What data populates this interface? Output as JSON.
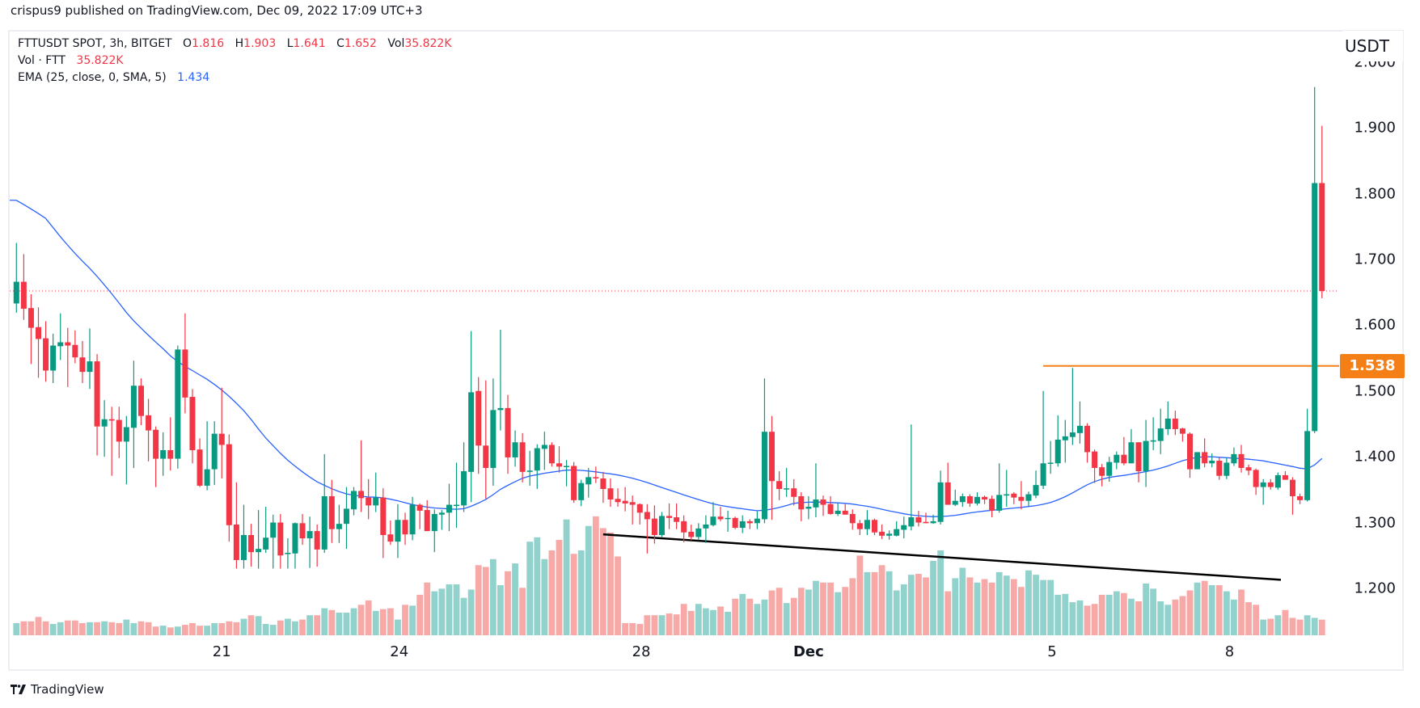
{
  "header": {
    "published": "crispus9 published on TradingView.com, Dec 09, 2022 17:09 UTC+3"
  },
  "legend": {
    "symbol": "FTTUSDT SPOT, 3h, BITGET",
    "o_label": "O",
    "o_value": "1.816",
    "h_label": "H",
    "h_value": "1.903",
    "l_label": "L",
    "l_value": "1.641",
    "c_label": "C",
    "c_value": "1.652",
    "vol_label": "Vol",
    "vol_value": "35.822K",
    "volume_name": "Vol · FTT",
    "volume_value": "35.822K",
    "ema_name": "EMA (25, close, 0, SMA, 5)",
    "ema_value": "1.434"
  },
  "price_axis": {
    "currency": "USDT",
    "ticks": [
      "2.000",
      "1.900",
      "1.800",
      "1.700",
      "1.600",
      "1.500",
      "1.400",
      "1.300",
      "1.200"
    ],
    "marked_level": "1.538"
  },
  "time_axis": {
    "ticks": [
      "21",
      "24",
      "28",
      "Dec",
      "5",
      "8"
    ]
  },
  "footer": {
    "brand": "TradingView"
  },
  "colors": {
    "up": "#089981",
    "down": "#f23645",
    "volume_up": "#92d2cc",
    "volume_down": "#f7a9a7",
    "ema": "#2962ff",
    "level_line": "#f57f17",
    "trendline": "#000000",
    "last_price_line": "#f23645"
  },
  "chart_data": {
    "type": "candlestick",
    "symbol": "FTTUSDT",
    "interval": "3h",
    "ylim": [
      1.15,
      2.0
    ],
    "y_scale": "linear",
    "grid": false,
    "last_price": 1.652,
    "horizontal_level": {
      "price": 1.538,
      "from_candle": 141
    },
    "trendline": {
      "from": {
        "candle": 81,
        "price": 1.282
      },
      "to": {
        "candle": 173.4,
        "price": 1.213
      }
    },
    "ema_indicator": "EMA (25, close, 0, SMA, 5)",
    "ohlc": [
      [
        1.633,
        1.725,
        1.619,
        1.666
      ],
      [
        1.666,
        1.708,
        1.608,
        1.625
      ],
      [
        1.626,
        1.647,
        1.541,
        1.596
      ],
      [
        1.597,
        1.627,
        1.52,
        1.579
      ],
      [
        1.58,
        1.606,
        1.514,
        1.531
      ],
      [
        1.531,
        1.587,
        1.512,
        1.569
      ],
      [
        1.568,
        1.618,
        1.547,
        1.574
      ],
      [
        1.574,
        1.596,
        1.506,
        1.569
      ],
      [
        1.57,
        1.592,
        1.542,
        1.551
      ],
      [
        1.551,
        1.576,
        1.512,
        1.529
      ],
      [
        1.529,
        1.595,
        1.503,
        1.545
      ],
      [
        1.545,
        1.556,
        1.402,
        1.446
      ],
      [
        1.446,
        1.486,
        1.4,
        1.457
      ],
      [
        1.457,
        1.476,
        1.371,
        1.455
      ],
      [
        1.456,
        1.476,
        1.398,
        1.423
      ],
      [
        1.423,
        1.462,
        1.358,
        1.445
      ],
      [
        1.444,
        1.546,
        1.383,
        1.508
      ],
      [
        1.508,
        1.519,
        1.448,
        1.462
      ],
      [
        1.463,
        1.488,
        1.393,
        1.44
      ],
      [
        1.441,
        1.446,
        1.354,
        1.397
      ],
      [
        1.397,
        1.437,
        1.371,
        1.41
      ],
      [
        1.41,
        1.46,
        1.379,
        1.397
      ],
      [
        1.397,
        1.569,
        1.382,
        1.563
      ],
      [
        1.563,
        1.618,
        1.466,
        1.49
      ],
      [
        1.491,
        1.503,
        1.39,
        1.41
      ],
      [
        1.411,
        1.428,
        1.354,
        1.356
      ],
      [
        1.356,
        1.454,
        1.349,
        1.381
      ],
      [
        1.381,
        1.454,
        1.357,
        1.435
      ],
      [
        1.435,
        1.505,
        1.367,
        1.418
      ],
      [
        1.419,
        1.434,
        1.271,
        1.296
      ],
      [
        1.297,
        1.361,
        1.23,
        1.243
      ],
      [
        1.243,
        1.327,
        1.23,
        1.281
      ],
      [
        1.281,
        1.298,
        1.233,
        1.255
      ],
      [
        1.255,
        1.319,
        1.23,
        1.26
      ],
      [
        1.259,
        1.324,
        1.254,
        1.277
      ],
      [
        1.277,
        1.312,
        1.23,
        1.3
      ],
      [
        1.3,
        1.313,
        1.23,
        1.25
      ],
      [
        1.252,
        1.276,
        1.23,
        1.254
      ],
      [
        1.253,
        1.3,
        1.23,
        1.299
      ],
      [
        1.299,
        1.313,
        1.266,
        1.276
      ],
      [
        1.276,
        1.309,
        1.231,
        1.287
      ],
      [
        1.287,
        1.297,
        1.233,
        1.259
      ],
      [
        1.259,
        1.404,
        1.254,
        1.34
      ],
      [
        1.34,
        1.365,
        1.269,
        1.29
      ],
      [
        1.29,
        1.327,
        1.269,
        1.298
      ],
      [
        1.298,
        1.354,
        1.26,
        1.321
      ],
      [
        1.32,
        1.354,
        1.311,
        1.348
      ],
      [
        1.348,
        1.425,
        1.316,
        1.337
      ],
      [
        1.338,
        1.366,
        1.305,
        1.326
      ],
      [
        1.326,
        1.376,
        1.316,
        1.338
      ],
      [
        1.338,
        1.352,
        1.246,
        1.281
      ],
      [
        1.282,
        1.303,
        1.266,
        1.271
      ],
      [
        1.271,
        1.328,
        1.246,
        1.304
      ],
      [
        1.304,
        1.315,
        1.266,
        1.282
      ],
      [
        1.282,
        1.339,
        1.273,
        1.327
      ],
      [
        1.327,
        1.329,
        1.29,
        1.318
      ],
      [
        1.319,
        1.334,
        1.287,
        1.287
      ],
      [
        1.287,
        1.32,
        1.255,
        1.313
      ],
      [
        1.312,
        1.319,
        1.289,
        1.315
      ],
      [
        1.315,
        1.359,
        1.287,
        1.327
      ],
      [
        1.326,
        1.391,
        1.292,
        1.327
      ],
      [
        1.326,
        1.422,
        1.316,
        1.378
      ],
      [
        1.377,
        1.591,
        1.331,
        1.498
      ],
      [
        1.5,
        1.521,
        1.374,
        1.417
      ],
      [
        1.417,
        1.516,
        1.336,
        1.383
      ],
      [
        1.383,
        1.519,
        1.356,
        1.471
      ],
      [
        1.471,
        1.593,
        1.44,
        1.474
      ],
      [
        1.474,
        1.494,
        1.374,
        1.399
      ],
      [
        1.399,
        1.44,
        1.385,
        1.422
      ],
      [
        1.422,
        1.436,
        1.361,
        1.377
      ],
      [
        1.377,
        1.409,
        1.356,
        1.379
      ],
      [
        1.379,
        1.419,
        1.351,
        1.413
      ],
      [
        1.412,
        1.438,
        1.38,
        1.418
      ],
      [
        1.418,
        1.422,
        1.385,
        1.39
      ],
      [
        1.39,
        1.416,
        1.376,
        1.385
      ],
      [
        1.385,
        1.395,
        1.355,
        1.386
      ],
      [
        1.386,
        1.392,
        1.33,
        1.334
      ],
      [
        1.334,
        1.365,
        1.325,
        1.36
      ],
      [
        1.358,
        1.383,
        1.338,
        1.369
      ],
      [
        1.369,
        1.385,
        1.36,
        1.367
      ],
      [
        1.367,
        1.377,
        1.33,
        1.351
      ],
      [
        1.352,
        1.367,
        1.324,
        1.335
      ],
      [
        1.336,
        1.352,
        1.324,
        1.331
      ],
      [
        1.333,
        1.354,
        1.317,
        1.329
      ],
      [
        1.331,
        1.341,
        1.297,
        1.327
      ],
      [
        1.328,
        1.329,
        1.297,
        1.315
      ],
      [
        1.316,
        1.328,
        1.253,
        1.305
      ],
      [
        1.306,
        1.326,
        1.268,
        1.281
      ],
      [
        1.281,
        1.316,
        1.278,
        1.31
      ],
      [
        1.31,
        1.329,
        1.29,
        1.307
      ],
      [
        1.308,
        1.329,
        1.29,
        1.301
      ],
      [
        1.302,
        1.311,
        1.27,
        1.285
      ],
      [
        1.286,
        1.297,
        1.273,
        1.278
      ],
      [
        1.278,
        1.299,
        1.273,
        1.291
      ],
      [
        1.291,
        1.311,
        1.269,
        1.297
      ],
      [
        1.296,
        1.331,
        1.294,
        1.309
      ],
      [
        1.309,
        1.324,
        1.302,
        1.305
      ],
      [
        1.306,
        1.318,
        1.286,
        1.307
      ],
      [
        1.307,
        1.309,
        1.29,
        1.292
      ],
      [
        1.292,
        1.311,
        1.284,
        1.302
      ],
      [
        1.302,
        1.305,
        1.29,
        1.299
      ],
      [
        1.299,
        1.317,
        1.29,
        1.306
      ],
      [
        1.305,
        1.519,
        1.299,
        1.438
      ],
      [
        1.438,
        1.462,
        1.304,
        1.363
      ],
      [
        1.363,
        1.378,
        1.334,
        1.351
      ],
      [
        1.351,
        1.383,
        1.339,
        1.352
      ],
      [
        1.352,
        1.366,
        1.326,
        1.339
      ],
      [
        1.34,
        1.346,
        1.302,
        1.32
      ],
      [
        1.321,
        1.34,
        1.305,
        1.324
      ],
      [
        1.323,
        1.39,
        1.308,
        1.335
      ],
      [
        1.335,
        1.341,
        1.31,
        1.327
      ],
      [
        1.328,
        1.34,
        1.312,
        1.313
      ],
      [
        1.313,
        1.329,
        1.31,
        1.318
      ],
      [
        1.318,
        1.328,
        1.312,
        1.312
      ],
      [
        1.313,
        1.32,
        1.289,
        1.299
      ],
      [
        1.299,
        1.304,
        1.281,
        1.29
      ],
      [
        1.29,
        1.319,
        1.281,
        1.304
      ],
      [
        1.304,
        1.306,
        1.281,
        1.285
      ],
      [
        1.286,
        1.297,
        1.275,
        1.28
      ],
      [
        1.28,
        1.288,
        1.274,
        1.283
      ],
      [
        1.28,
        1.302,
        1.279,
        1.29
      ],
      [
        1.289,
        1.309,
        1.276,
        1.296
      ],
      [
        1.294,
        1.449,
        1.288,
        1.308
      ],
      [
        1.308,
        1.318,
        1.294,
        1.3
      ],
      [
        1.301,
        1.315,
        1.299,
        1.299
      ],
      [
        1.299,
        1.312,
        1.298,
        1.302
      ],
      [
        1.301,
        1.379,
        1.297,
        1.361
      ],
      [
        1.361,
        1.391,
        1.327,
        1.327
      ],
      [
        1.327,
        1.35,
        1.325,
        1.333
      ],
      [
        1.331,
        1.344,
        1.324,
        1.34
      ],
      [
        1.34,
        1.343,
        1.324,
        1.329
      ],
      [
        1.329,
        1.346,
        1.326,
        1.339
      ],
      [
        1.339,
        1.341,
        1.328,
        1.335
      ],
      [
        1.336,
        1.341,
        1.308,
        1.318
      ],
      [
        1.318,
        1.39,
        1.315,
        1.342
      ],
      [
        1.341,
        1.38,
        1.324,
        1.343
      ],
      [
        1.344,
        1.346,
        1.328,
        1.338
      ],
      [
        1.339,
        1.363,
        1.32,
        1.333
      ],
      [
        1.333,
        1.347,
        1.325,
        1.343
      ],
      [
        1.341,
        1.379,
        1.337,
        1.357
      ],
      [
        1.356,
        1.5,
        1.351,
        1.39
      ],
      [
        1.39,
        1.424,
        1.374,
        1.391
      ],
      [
        1.39,
        1.463,
        1.385,
        1.426
      ],
      [
        1.425,
        1.456,
        1.391,
        1.431
      ],
      [
        1.43,
        1.535,
        1.418,
        1.437
      ],
      [
        1.436,
        1.484,
        1.42,
        1.447
      ],
      [
        1.447,
        1.451,
        1.391,
        1.407
      ],
      [
        1.408,
        1.411,
        1.36,
        1.383
      ],
      [
        1.384,
        1.389,
        1.355,
        1.371
      ],
      [
        1.371,
        1.4,
        1.362,
        1.392
      ],
      [
        1.391,
        1.408,
        1.381,
        1.403
      ],
      [
        1.403,
        1.43,
        1.387,
        1.39
      ],
      [
        1.39,
        1.442,
        1.39,
        1.422
      ],
      [
        1.422,
        1.422,
        1.361,
        1.378
      ],
      [
        1.378,
        1.456,
        1.354,
        1.424
      ],
      [
        1.423,
        1.46,
        1.41,
        1.425
      ],
      [
        1.424,
        1.473,
        1.404,
        1.443
      ],
      [
        1.442,
        1.484,
        1.433,
        1.458
      ],
      [
        1.458,
        1.47,
        1.433,
        1.442
      ],
      [
        1.443,
        1.444,
        1.423,
        1.435
      ],
      [
        1.435,
        1.437,
        1.368,
        1.381
      ],
      [
        1.381,
        1.407,
        1.381,
        1.407
      ],
      [
        1.407,
        1.428,
        1.384,
        1.39
      ],
      [
        1.39,
        1.405,
        1.384,
        1.394
      ],
      [
        1.394,
        1.399,
        1.365,
        1.371
      ],
      [
        1.371,
        1.399,
        1.366,
        1.391
      ],
      [
        1.39,
        1.414,
        1.386,
        1.404
      ],
      [
        1.404,
        1.418,
        1.376,
        1.383
      ],
      [
        1.384,
        1.388,
        1.372,
        1.379
      ],
      [
        1.38,
        1.382,
        1.342,
        1.354
      ],
      [
        1.354,
        1.366,
        1.327,
        1.361
      ],
      [
        1.361,
        1.366,
        1.35,
        1.354
      ],
      [
        1.353,
        1.376,
        1.35,
        1.372
      ],
      [
        1.372,
        1.378,
        1.365,
        1.365
      ],
      [
        1.365,
        1.369,
        1.312,
        1.34
      ],
      [
        1.34,
        1.344,
        1.328,
        1.334
      ],
      [
        1.334,
        1.473,
        1.332,
        1.439
      ],
      [
        1.439,
        1.962,
        1.436,
        1.816
      ],
      [
        1.816,
        1.903,
        1.641,
        1.652
      ]
    ],
    "volume_k": [
      28,
      32,
      32,
      42,
      32,
      26,
      30,
      34,
      34,
      28,
      30,
      30,
      32,
      30,
      28,
      36,
      28,
      32,
      30,
      20,
      22,
      18,
      20,
      24,
      28,
      22,
      22,
      28,
      28,
      32,
      30,
      38,
      46,
      44,
      26,
      24,
      34,
      38,
      32,
      36,
      46,
      46,
      62,
      58,
      52,
      52,
      62,
      70,
      80,
      56,
      60,
      62,
      36,
      70,
      68,
      93,
      121,
      101,
      107,
      117,
      117,
      86,
      105,
      161,
      157,
      175,
      115,
      147,
      165,
      109,
      215,
      225,
      175,
      195,
      219,
      266,
      187,
      195,
      251,
      273,
      246,
      236,
      181,
      28,
      28,
      26,
      46,
      46,
      46,
      50,
      48,
      72,
      56,
      72,
      62,
      58,
      66,
      54,
      84,
      95,
      84,
      72,
      82,
      103,
      109,
      74,
      86,
      109,
      105,
      125,
      121,
      121,
      99,
      111,
      131,
      183,
      145,
      145,
      161,
      147,
      103,
      117,
      139,
      141,
      133,
      171,
      195,
      101,
      131,
      155,
      133,
      121,
      129,
      121,
      145,
      137,
      129,
      111,
      149,
      139,
      127,
      127,
      93,
      95,
      76,
      80,
      68,
      72,
      93,
      93,
      101,
      97,
      84,
      78,
      119,
      107,
      78,
      70,
      82,
      90,
      103,
      121,
      125,
      115,
      115,
      101,
      82,
      105,
      76,
      70,
      36,
      38,
      46,
      58,
      40,
      36,
      46,
      40,
      35.822
    ]
  }
}
